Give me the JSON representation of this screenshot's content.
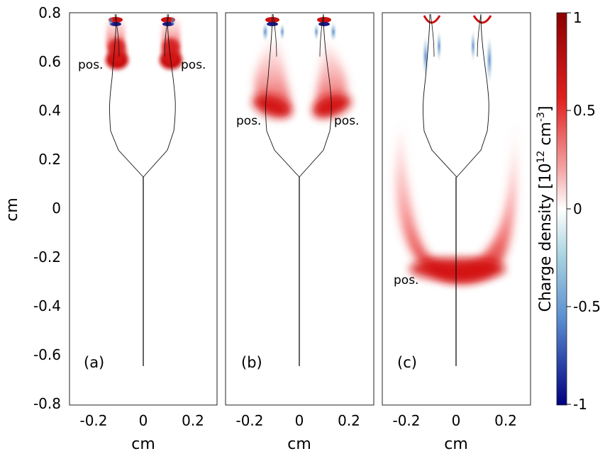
{
  "chart_data": {
    "type": "heatmap",
    "title": "",
    "ylabel": "cm",
    "xlabel": "cm",
    "xlim": [
      -0.3,
      0.3
    ],
    "ylim": [
      -0.8,
      0.8
    ],
    "x_ticks": [
      "-0.2",
      "0",
      "0.2"
    ],
    "y_ticks": [
      "0.8",
      "0.6",
      "0.4",
      "0.2",
      "0",
      "-0.2",
      "-0.4",
      "-0.6",
      "-0.8"
    ],
    "colorbar": {
      "label_main": "Charge density [10",
      "label_exp1": "12",
      "label_unit": " cm",
      "label_exp2": "-3",
      "label_close": "]",
      "range": [
        -1,
        1
      ],
      "ticks": [
        "1",
        "0.5",
        "0",
        "-0.5",
        "-1"
      ],
      "colors": {
        "max": "#8b0000",
        "mid_pos": "#e83030",
        "zero": "#ffffff",
        "mid_neg": "#5a8ed0",
        "min": "#000080"
      }
    },
    "panels": [
      {
        "label": "(a)",
        "annotations": [
          {
            "text": "pos.",
            "x": -0.25,
            "y": 0.59
          },
          {
            "text": "pos.",
            "x": 0.145,
            "y": 0.59
          }
        ],
        "blobs": [
          {
            "x": -0.11,
            "y": 0.63,
            "value": 1.0
          },
          {
            "x": 0.11,
            "y": 0.63,
            "value": 1.0
          }
        ]
      },
      {
        "label": "(b)",
        "annotations": [
          {
            "text": "pos.",
            "x": -0.25,
            "y": 0.36
          },
          {
            "text": "pos.",
            "x": 0.13,
            "y": 0.36
          }
        ],
        "blobs": [
          {
            "x": -0.12,
            "y": 0.43,
            "value": 1.0
          },
          {
            "x": 0.13,
            "y": 0.43,
            "value": 1.0
          }
        ]
      },
      {
        "label": "(c)",
        "annotations": [
          {
            "text": "pos.",
            "x": -0.25,
            "y": -0.29
          }
        ],
        "blobs": [
          {
            "x": 0.0,
            "y": -0.25,
            "value": 1.0
          }
        ]
      }
    ]
  }
}
